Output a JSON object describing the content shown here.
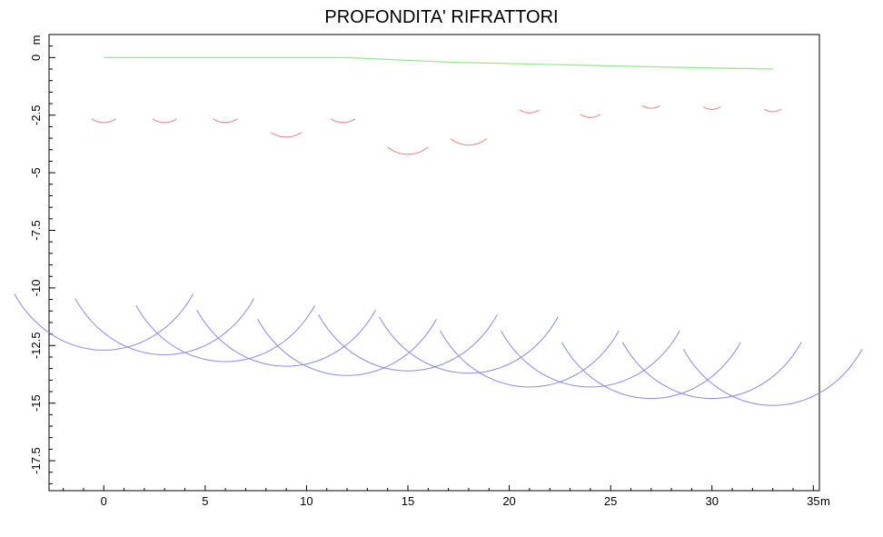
{
  "chart_data": {
    "type": "line",
    "title": "PROFONDITA' RIFRATTORI",
    "xlabel": "m",
    "ylabel": "m",
    "xlim": [
      -2.7,
      35.3
    ],
    "ylim": [
      -18.8,
      1.0
    ],
    "x_ticks": [
      0,
      5,
      10,
      15,
      20,
      25,
      30,
      35
    ],
    "x_tick_labels": [
      "0",
      "5",
      "10",
      "15",
      "20",
      "25",
      "30",
      "35"
    ],
    "y_ticks": [
      0,
      -2.5,
      -5,
      -7.5,
      -10,
      -12.5,
      -15,
      -17.5
    ],
    "y_tick_labels": [
      "0",
      "-2.5",
      "-5",
      "-7.5",
      "-10",
      "-12.5",
      "-15",
      "-17.5"
    ],
    "grid": false,
    "colors": {
      "surface": "#8fe88f",
      "refractor1": "#f08080",
      "refractor2": "#8888ee"
    },
    "series": [
      {
        "key": "surface",
        "kind": "line",
        "x": [
          0,
          12,
          17,
          22,
          27,
          33
        ],
        "y": [
          0,
          0,
          -0.2,
          -0.3,
          -0.4,
          -0.5
        ]
      },
      {
        "key": "refractor1",
        "kind": "arcs",
        "arcs": [
          {
            "cx": 0,
            "cy": -1.62,
            "r": 1.2,
            "a0": 240,
            "a1": 300
          },
          {
            "cx": 3,
            "cy": -1.62,
            "r": 1.2,
            "a0": 240,
            "a1": 300
          },
          {
            "cx": 6,
            "cy": -1.62,
            "r": 1.2,
            "a0": 240,
            "a1": 300
          },
          {
            "cx": 9,
            "cy": -1.95,
            "r": 1.5,
            "a0": 240,
            "a1": 300
          },
          {
            "cx": 11.8,
            "cy": -1.62,
            "r": 1.2,
            "a0": 240,
            "a1": 300
          },
          {
            "cx": 15,
            "cy": -2.45,
            "r": 1.75,
            "a0": 235,
            "a1": 305
          },
          {
            "cx": 18,
            "cy": -2.25,
            "r": 1.55,
            "a0": 235,
            "a1": 305
          },
          {
            "cx": 21,
            "cy": -1.45,
            "r": 0.95,
            "a0": 240,
            "a1": 300
          },
          {
            "cx": 24,
            "cy": -1.6,
            "r": 1.0,
            "a0": 240,
            "a1": 300
          },
          {
            "cx": 27,
            "cy": -1.35,
            "r": 0.85,
            "a0": 240,
            "a1": 300
          },
          {
            "cx": 30,
            "cy": -1.4,
            "r": 0.85,
            "a0": 240,
            "a1": 300
          },
          {
            "cx": 33,
            "cy": -1.5,
            "r": 0.85,
            "a0": 240,
            "a1": 300
          }
        ]
      },
      {
        "key": "refractor2",
        "kind": "arcs",
        "arcs": [
          {
            "cx": 0,
            "cy": -7.5,
            "r": 5.2,
            "a0": 212,
            "a1": 328
          },
          {
            "cx": 3,
            "cy": -7.7,
            "r": 5.2,
            "a0": 212,
            "a1": 328
          },
          {
            "cx": 6,
            "cy": -8.0,
            "r": 5.2,
            "a0": 212,
            "a1": 328
          },
          {
            "cx": 9,
            "cy": -8.2,
            "r": 5.2,
            "a0": 212,
            "a1": 328
          },
          {
            "cx": 12,
            "cy": -8.6,
            "r": 5.2,
            "a0": 212,
            "a1": 328
          },
          {
            "cx": 15,
            "cy": -8.4,
            "r": 5.2,
            "a0": 212,
            "a1": 328
          },
          {
            "cx": 18,
            "cy": -8.5,
            "r": 5.2,
            "a0": 212,
            "a1": 328
          },
          {
            "cx": 21,
            "cy": -9.1,
            "r": 5.2,
            "a0": 212,
            "a1": 328
          },
          {
            "cx": 24,
            "cy": -9.1,
            "r": 5.2,
            "a0": 212,
            "a1": 328
          },
          {
            "cx": 27,
            "cy": -9.6,
            "r": 5.2,
            "a0": 212,
            "a1": 328
          },
          {
            "cx": 30,
            "cy": -9.6,
            "r": 5.2,
            "a0": 212,
            "a1": 328
          },
          {
            "cx": 33,
            "cy": -9.9,
            "r": 5.2,
            "a0": 212,
            "a1": 328
          }
        ]
      }
    ]
  }
}
